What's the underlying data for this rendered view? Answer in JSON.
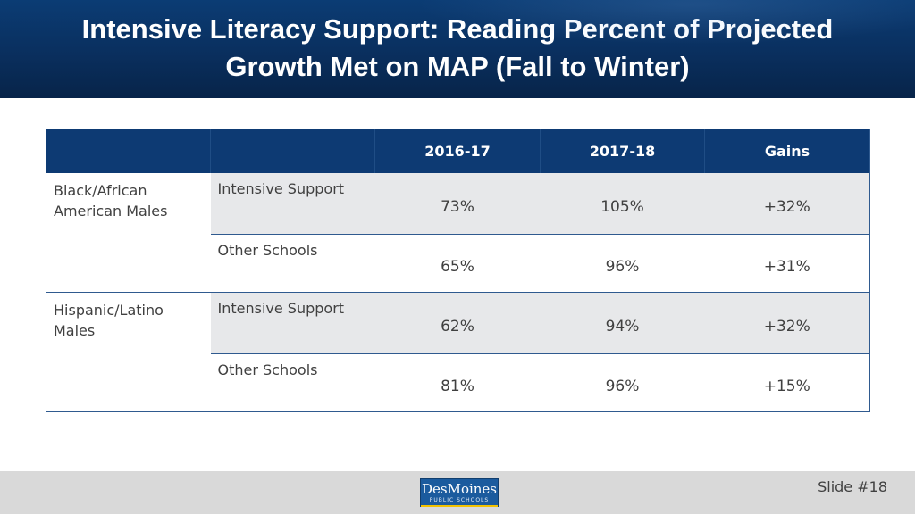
{
  "header": {
    "title_line1": "Intensive Literacy Support: Reading Percent of Projected",
    "title_line2": "Growth Met on MAP (Fall to Winter)"
  },
  "table": {
    "columns": [
      "",
      "",
      "2016-17",
      "2017-18",
      "Gains"
    ],
    "groups": [
      {
        "label": "Black/African American Males",
        "rows": [
          {
            "label": "Intensive Support",
            "y2016_17": "73%",
            "y2017_18": "105%",
            "gains": "+32%"
          },
          {
            "label": "Other Schools",
            "y2016_17": "65%",
            "y2017_18": "96%",
            "gains": "+31%"
          }
        ]
      },
      {
        "label": "Hispanic/Latino Males",
        "rows": [
          {
            "label": "Intensive Support",
            "y2016_17": "62%",
            "y2017_18": "94%",
            "gains": "+32%"
          },
          {
            "label": "Other Schools",
            "y2016_17": "81%",
            "y2017_18": "96%",
            "gains": "+15%"
          }
        ]
      }
    ]
  },
  "footer": {
    "logo_main": "DesMoines",
    "logo_sub": "PUBLIC SCHOOLS",
    "slide_number": "Slide #18"
  },
  "colors": {
    "header_bg": "#0a2f5e",
    "table_header_bg": "#0d3a73",
    "row_shade": "#e7e8ea",
    "footer_bg": "#d9d9d9"
  }
}
